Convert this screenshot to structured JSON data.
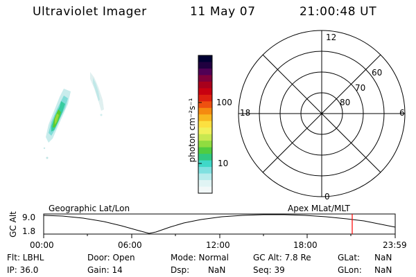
{
  "header": {
    "instrument": "Ultraviolet Imager",
    "date": "11 May 07",
    "time": "21:00:48 UT"
  },
  "colorbar": {
    "label": "photon cm⁻²s⁻¹",
    "ticks": [
      "100",
      "10"
    ],
    "colors": [
      "#000033",
      "#200040",
      "#500055",
      "#80003a",
      "#a8001c",
      "#c80010",
      "#dd2010",
      "#ee5010",
      "#f58a10",
      "#f8b820",
      "#fce040",
      "#f0f05a",
      "#c8e850",
      "#90dc40",
      "#50cc40",
      "#30c880",
      "#40d8c8",
      "#80e0e0",
      "#b8ecec",
      "#e0f4f4",
      "#f2f8f8"
    ]
  },
  "polar": {
    "mlt_labels": {
      "top": "12",
      "left": "18",
      "right": "6",
      "bottom": "0"
    },
    "lat_labels": [
      "60",
      "70",
      "80"
    ]
  },
  "orbit": {
    "y_axis_label": "GC Alt",
    "y_ticks": [
      "9.0",
      "1.8"
    ],
    "left_label": "Geographic Lat/Lon",
    "right_label": "Apex MLat/MLT",
    "x_ticks": [
      "00:00",
      "06:00",
      "12:00",
      "18:00",
      "23:59"
    ],
    "marker_color": "#ff0000"
  },
  "info": {
    "row1": [
      "Flt: LBHL",
      "Door: Open",
      "Mode: Normal",
      "GC Alt: 7.8 Re",
      "GLat:",
      "NaN"
    ],
    "row2": [
      "IP: 36.0",
      "Gain: 14",
      "Dsp:",
      "NaN",
      "Seq: 39",
      "GLon:",
      "NaN"
    ]
  }
}
